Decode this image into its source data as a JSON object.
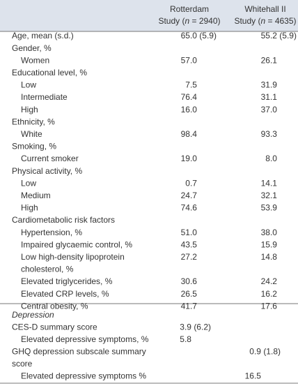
{
  "header": {
    "columns": [
      {
        "name": "Rotterdam",
        "study": [
          "Study (",
          "n",
          " = 2940)"
        ]
      },
      {
        "name": "Whitehall II",
        "study": [
          "Study (",
          "n",
          " = 4635)"
        ]
      }
    ]
  },
  "sections": [
    {
      "rows": [
        {
          "label": "Age, mean (s.d.)",
          "rotterdam": "65.0 (5.9)",
          "whitehall": "55.2 (5.9)"
        },
        {
          "label": "Gender, %",
          "items": [
            {
              "label": "Women",
              "rotterdam": "57.0",
              "whitehall": "26.1"
            }
          ]
        },
        {
          "label": "Educational level, %",
          "items": [
            {
              "label": "Low",
              "rotterdam": "7.5",
              "whitehall": "31.9"
            },
            {
              "label": "Intermediate",
              "rotterdam": "76.4",
              "whitehall": "31.1"
            },
            {
              "label": "High",
              "rotterdam": "16.0",
              "whitehall": "37.0"
            }
          ]
        },
        {
          "label": "Ethnicity, %",
          "items": [
            {
              "label": "White",
              "rotterdam": "98.4",
              "whitehall": "93.3"
            }
          ]
        },
        {
          "label": "Smoking, %",
          "items": [
            {
              "label": "Current smoker",
              "rotterdam": "19.0",
              "whitehall": "8.0"
            }
          ]
        },
        {
          "label": "Physical activity, %",
          "items": [
            {
              "label": "Low",
              "rotterdam": "0.7",
              "whitehall": "14.1"
            },
            {
              "label": "Medium",
              "rotterdam": "24.7",
              "whitehall": "32.1"
            },
            {
              "label": "High",
              "rotterdam": "74.6",
              "whitehall": "53.9"
            }
          ]
        },
        {
          "label": "Cardiometabolic risk factors",
          "items": [
            {
              "label": "Hypertension, %",
              "rotterdam": "51.0",
              "whitehall": "38.0"
            },
            {
              "label": "Impaired glycaemic control, %",
              "rotterdam": "43.5",
              "whitehall": "15.9"
            },
            {
              "label": [
                "Low high-density lipoprotein",
                "cholesterol, %"
              ],
              "rotterdam": "27.2",
              "whitehall": "14.8"
            },
            {
              "label": "Elevated triglycerides, %",
              "rotterdam": "30.6",
              "whitehall": "24.2"
            },
            {
              "label": "Elevated CRP levels, %",
              "rotterdam": "26.5",
              "whitehall": "16.2"
            },
            {
              "label": "Central obesity, %",
              "rotterdam": "41.7",
              "whitehall": "17.6"
            }
          ]
        }
      ]
    },
    {
      "heading": "Depression",
      "rows": [
        {
          "label": "CES-D summary score",
          "rotterdam": "3.9 (6.2)",
          "items": [
            {
              "label": "Elevated depressive symptoms, %",
              "rotterdam": "5.8"
            }
          ]
        },
        {
          "label": [
            "GHQ depression subscale summary",
            "score"
          ],
          "whitehall": "0.9 (1.8)",
          "items": [
            {
              "label": "Elevated depressive symptoms %",
              "whitehall": "16.5"
            }
          ]
        }
      ]
    }
  ]
}
